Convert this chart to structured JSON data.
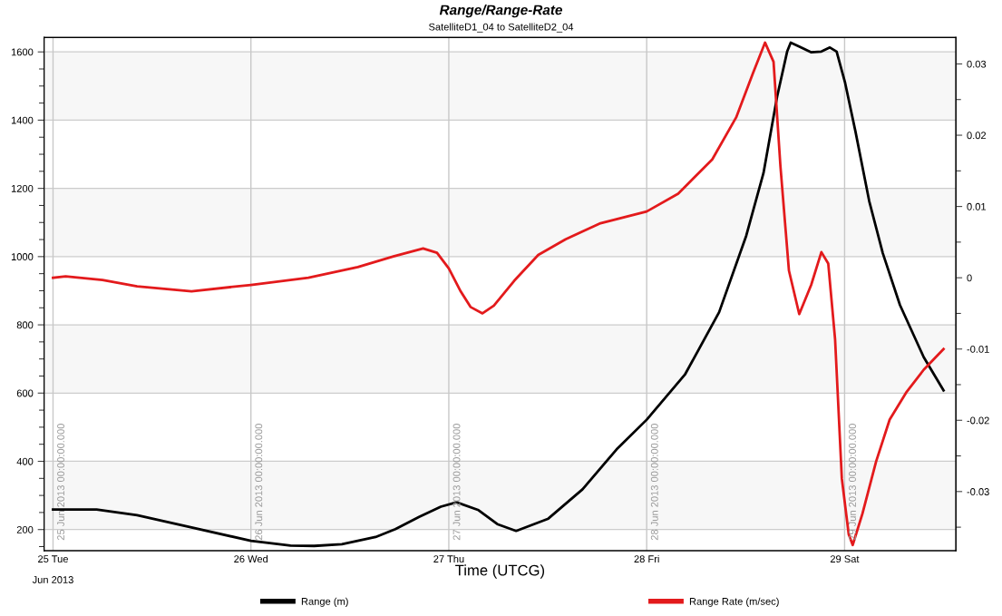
{
  "chart_data": {
    "type": "line",
    "title": "Range/Range-Rate",
    "subtitle": "SatelliteD1_04 to SatelliteD2_04",
    "xlabel": "Time (UTCG)",
    "annotations": [
      "Jun 2013"
    ],
    "xlim": [
      "2013-06-24T22:55",
      "2013-06-29T13:30"
    ],
    "xticks": [
      {
        "value": "2013-06-25",
        "label": "25 Tue"
      },
      {
        "value": "2013-06-26",
        "label": "26 Wed"
      },
      {
        "value": "2013-06-27",
        "label": "27 Thu"
      },
      {
        "value": "2013-06-28",
        "label": "28 Fri"
      },
      {
        "value": "2013-06-29",
        "label": "29 Sat"
      }
    ],
    "ylim": [
      138,
      1642
    ],
    "yticks": [
      {
        "value": 150,
        "label": null
      },
      200,
      {
        "value": 250,
        "label": null
      },
      {
        "value": 300,
        "label": null
      },
      {
        "value": 350,
        "label": null
      },
      400,
      {
        "value": 450,
        "label": null
      },
      {
        "value": 500,
        "label": null
      },
      {
        "value": 550,
        "label": null
      },
      600,
      {
        "value": 650,
        "label": null
      },
      {
        "value": 700,
        "label": null
      },
      {
        "value": 750,
        "label": null
      },
      800,
      {
        "value": 850,
        "label": null
      },
      {
        "value": 900,
        "label": null
      },
      {
        "value": 950,
        "label": null
      },
      1000,
      {
        "value": 1050,
        "label": null
      },
      {
        "value": 1100,
        "label": null
      },
      {
        "value": 1150,
        "label": null
      },
      1200,
      {
        "value": 1250,
        "label": null
      },
      {
        "value": 1300,
        "label": null
      },
      {
        "value": 1350,
        "label": null
      },
      1400,
      {
        "value": 1450,
        "label": null
      },
      {
        "value": 1500,
        "label": null
      },
      {
        "value": 1550,
        "label": null
      },
      1600
    ],
    "y2lim": [
      -0.0383,
      0.0337
    ],
    "y2ticks": [
      {
        "value": -0.035,
        "label": null
      },
      -0.03,
      {
        "value": -0.025,
        "label": null
      },
      -0.02,
      {
        "value": -0.015,
        "label": null
      },
      -0.01,
      {
        "value": -0.005,
        "label": null
      },
      0,
      {
        "value": 0.005,
        "label": null
      },
      0.01,
      {
        "value": 0.015,
        "label": null
      },
      0.02,
      {
        "value": 0.025,
        "label": null
      },
      0.03
    ],
    "grid": "y",
    "legend": "bottom",
    "line_style": "solid",
    "bands": [
      {
        "axis": "y",
        "from": 200,
        "to": 400,
        "color": "#f7f7f7"
      },
      {
        "axis": "y",
        "from": 600,
        "to": 800,
        "color": "#f7f7f7"
      },
      {
        "axis": "y",
        "from": 1000,
        "to": 1200,
        "color": "#f7f7f7"
      },
      {
        "axis": "y",
        "from": 1400,
        "to": 1600,
        "color": "#f7f7f7"
      }
    ],
    "ref_lines": [
      {
        "axis": "x",
        "value": "2013-06-25",
        "label": "25 Jun 2013 00:00:00.000",
        "color": "#c8c8c8"
      },
      {
        "axis": "x",
        "value": "2013-06-26",
        "label": "26 Jun 2013 00:00:00.000",
        "color": "#c8c8c8"
      },
      {
        "axis": "x",
        "value": "2013-06-27",
        "label": "27 Jun 2013 00:00:00.000",
        "color": "#c8c8c8"
      },
      {
        "axis": "x",
        "value": "2013-06-28",
        "label": "28 Jun 2013 00:00:00.000",
        "color": "#c8c8c8"
      },
      {
        "axis": "x",
        "value": "2013-06-29",
        "label": "29 Jun 2013 00:00:00.000",
        "color": "#c8c8c8"
      }
    ],
    "series": [
      {
        "name": "Range (m)",
        "color": "#000000",
        "x": [
          "2013-06-25T00:00",
          "2013-06-25T05:17",
          "2013-06-25T10:12",
          "2013-06-25T16:48",
          "2013-06-26T00:00",
          "2013-06-26T04:48",
          "2013-06-26T07:41",
          "2013-06-26T11:02",
          "2013-06-26T15:07",
          "2013-06-26T17:31",
          "2013-06-26T20:24",
          "2013-06-26T23:02",
          "2013-06-27T00:58",
          "2013-06-27T03:36",
          "2013-06-27T05:53",
          "2013-06-27T08:10",
          "2013-06-27T12:04",
          "2013-06-27T16:13",
          "2013-06-27T20:21",
          "2013-06-28T00:00",
          "2013-06-28T04:38",
          "2013-06-28T08:47",
          "2013-06-28T12:04",
          "2013-06-28T14:10",
          "2013-06-28T15:49",
          "2013-06-28T17:02",
          "2013-06-28T17:28",
          "2013-06-28T18:29",
          "2013-06-28T19:55",
          "2013-06-28T21:11",
          "2013-06-28T22:13",
          "2013-06-28T23:02",
          "2013-06-29T00:04",
          "2013-06-29T01:19",
          "2013-06-29T02:59",
          "2013-06-29T04:38",
          "2013-06-29T06:43",
          "2013-06-29T09:36",
          "2013-06-29T12:00"
        ],
        "values": [
          259,
          259,
          242,
          206,
          167,
          153,
          152,
          157,
          178,
          201,
          237,
          267,
          280,
          257,
          216,
          196,
          232,
          318,
          435,
          522,
          654,
          837,
          1061,
          1245,
          1469,
          1601,
          1627,
          1616,
          1599,
          1601,
          1613,
          1601,
          1509,
          1367,
          1163,
          1010,
          858,
          705,
          608
        ]
      },
      {
        "name": "Range Rate (m/sec)",
        "color": "#e31a1c",
        "axis": "y2",
        "x": [
          "2013-06-25T00:00",
          "2013-06-25T01:32",
          "2013-06-25T06:00",
          "2013-06-25T10:12",
          "2013-06-25T16:48",
          "2013-06-26T00:00",
          "2013-06-26T06:58",
          "2013-06-26T12:58",
          "2013-06-26T17:17",
          "2013-06-26T20:53",
          "2013-06-26T22:34",
          "2013-06-27T00:00",
          "2013-06-27T01:26",
          "2013-06-27T02:38",
          "2013-06-27T04:05",
          "2013-06-27T05:28",
          "2013-06-27T07:57",
          "2013-06-27T10:51",
          "2013-06-27T14:10",
          "2013-06-27T18:17",
          "2013-06-28T00:00",
          "2013-06-28T03:49",
          "2013-06-28T07:57",
          "2013-06-28T10:51",
          "2013-06-28T12:55",
          "2013-06-28T14:21",
          "2013-06-28T15:23",
          "2013-06-28T16:13",
          "2013-06-28T17:15",
          "2013-06-28T18:30",
          "2013-06-28T19:57",
          "2013-06-28T21:11",
          "2013-06-28T22:01",
          "2013-06-28T22:51",
          "2013-06-28T23:40",
          "2013-06-29T00:30",
          "2013-06-29T00:59",
          "2013-06-29T02:10",
          "2013-06-29T03:49",
          "2013-06-29T05:28",
          "2013-06-29T07:32",
          "2013-06-29T09:36",
          "2013-06-29T12:00"
        ],
        "values": [
          0.0,
          0.0002,
          -0.0003,
          -0.0012,
          -0.0019,
          -0.001,
          0.0,
          0.0015,
          0.003,
          0.0041,
          0.0035,
          0.0013,
          -0.0019,
          -0.0041,
          -0.005,
          -0.0039,
          -0.0004,
          0.0032,
          0.0054,
          0.0076,
          0.0093,
          0.0118,
          0.0166,
          0.0225,
          0.0288,
          0.033,
          0.0303,
          0.0157,
          0.001,
          -0.0051,
          -0.001,
          0.0036,
          0.002,
          -0.0087,
          -0.0282,
          -0.036,
          -0.0375,
          -0.0331,
          -0.0258,
          -0.0199,
          -0.016,
          -0.0129,
          -0.01
        ]
      }
    ]
  }
}
